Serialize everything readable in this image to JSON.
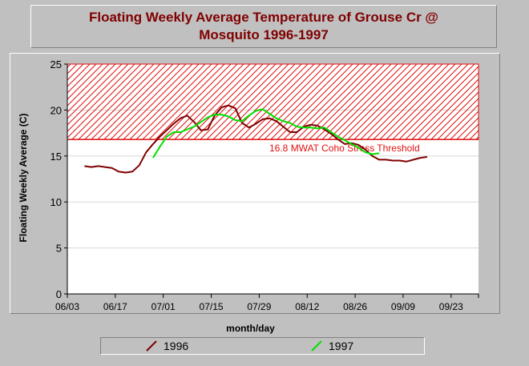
{
  "chart_data": {
    "type": "line",
    "title": "Floating Weekly Average Temperature of Grouse Cr @ Mosquito 1996-1997",
    "xlabel": "month/day",
    "ylabel": "Floating Weekly Average (C)",
    "ylim": [
      0,
      25
    ],
    "yticks": [
      0,
      5,
      10,
      15,
      20,
      25
    ],
    "xticks": [
      "06/03",
      "06/17",
      "07/01",
      "07/15",
      "07/29",
      "08/12",
      "08/26",
      "09/09",
      "09/23"
    ],
    "threshold": {
      "value": 16.8,
      "upper": 25,
      "label": "16.8 MWAT Coho Stress Threshold",
      "color": "#e01010"
    },
    "grid": true,
    "series": [
      {
        "name": "1996",
        "color": "#800000",
        "x": [
          5,
          7,
          9,
          11,
          13,
          15,
          17,
          19,
          21,
          23,
          25,
          27,
          29,
          31,
          33,
          35,
          37,
          39,
          41,
          43,
          45,
          47,
          49,
          51,
          53,
          55,
          57,
          59,
          61,
          63,
          65,
          67,
          69,
          71,
          73,
          75,
          77,
          79,
          81,
          83,
          85,
          87,
          89,
          91,
          93,
          95,
          97,
          99,
          101,
          103,
          105,
          107,
          109,
          111,
          113,
          115,
          117
        ],
        "values": [
          13.9,
          13.8,
          13.9,
          13.8,
          13.7,
          13.3,
          13.2,
          13.3,
          14.0,
          15.4,
          16.3,
          17.1,
          17.8,
          18.5,
          19.1,
          19.4,
          18.7,
          17.8,
          17.9,
          19.4,
          20.3,
          20.5,
          20.2,
          18.6,
          18.1,
          18.5,
          19.0,
          19.1,
          18.8,
          18.2,
          17.6,
          17.6,
          18.2,
          18.4,
          18.3,
          17.9,
          17.4,
          16.8,
          16.3,
          16.4,
          16.2,
          15.7,
          15.0,
          14.6,
          14.6,
          14.5,
          14.5,
          14.4,
          14.6,
          14.8,
          14.9,
          null,
          null,
          null,
          null,
          null,
          null
        ]
      },
      {
        "name": "1997",
        "color": "#00e000",
        "x": [
          25,
          27,
          29,
          31,
          33,
          35,
          37,
          39,
          41,
          43,
          45,
          47,
          49,
          51,
          53,
          55,
          57,
          59,
          61,
          63,
          65,
          67,
          69,
          71,
          73,
          75,
          77,
          79,
          81,
          83,
          85,
          87,
          89,
          91
        ],
        "values": [
          14.8,
          16.0,
          17.1,
          17.6,
          17.6,
          17.9,
          18.2,
          18.7,
          19.2,
          19.5,
          19.5,
          19.3,
          18.9,
          18.8,
          19.4,
          19.9,
          20.1,
          19.6,
          19.1,
          18.8,
          18.6,
          18.2,
          18.1,
          18.1,
          18.0,
          18.1,
          17.6,
          17.1,
          16.7,
          16.3,
          15.9,
          15.4,
          15.2,
          15.3
        ]
      }
    ],
    "x_start_label": "06/03"
  }
}
